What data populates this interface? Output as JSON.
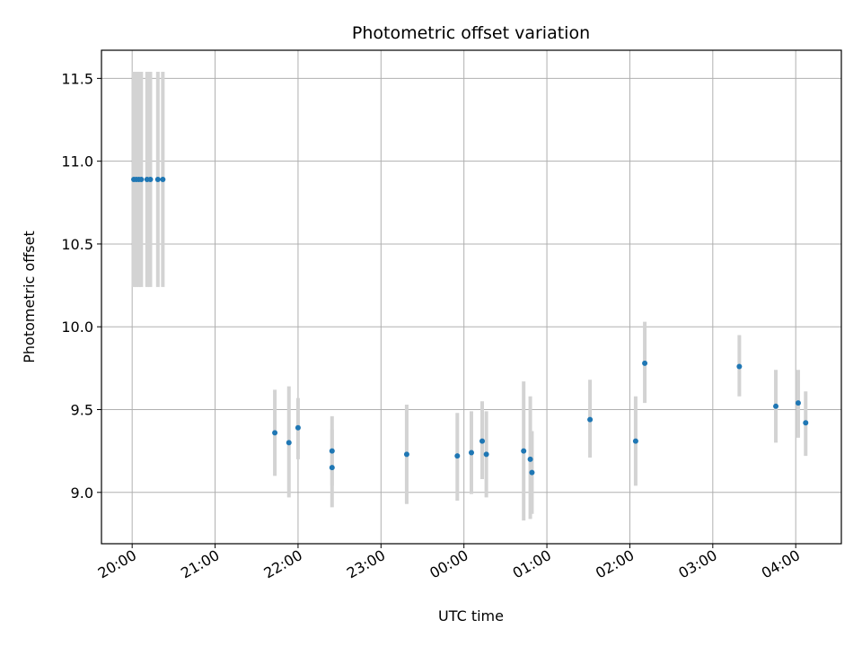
{
  "chart_data": {
    "type": "scatter",
    "title": "Photometric offset variation",
    "xlabel": "UTC time",
    "ylabel": "Photometric offset",
    "x_unit": "hours",
    "xlim": [
      19.63,
      28.55
    ],
    "ylim": [
      8.69,
      11.67
    ],
    "grid": true,
    "x_ticks": [
      {
        "value": 20,
        "label": "20:00"
      },
      {
        "value": 21,
        "label": "21:00"
      },
      {
        "value": 22,
        "label": "22:00"
      },
      {
        "value": 23,
        "label": "23:00"
      },
      {
        "value": 24,
        "label": "00:00"
      },
      {
        "value": 25,
        "label": "01:00"
      },
      {
        "value": 26,
        "label": "02:00"
      },
      {
        "value": 27,
        "label": "03:00"
      },
      {
        "value": 28,
        "label": "04:00"
      }
    ],
    "y_ticks": [
      {
        "value": 9.0,
        "label": "9.0"
      },
      {
        "value": 9.5,
        "label": "9.5"
      },
      {
        "value": 10.0,
        "label": "10.0"
      },
      {
        "value": 10.5,
        "label": "10.5"
      },
      {
        "value": 11.0,
        "label": "11.0"
      },
      {
        "value": 11.5,
        "label": "11.5"
      }
    ],
    "colors": {
      "point": "#1f77b4",
      "errorbar": "#d3d3d3",
      "grid": "#b0b0b0"
    },
    "points": [
      {
        "x": 20.02,
        "y": 10.89,
        "err_low": 10.24,
        "err_high": 11.54
      },
      {
        "x": 20.05,
        "y": 10.89,
        "err_low": 10.24,
        "err_high": 11.54
      },
      {
        "x": 20.08,
        "y": 10.89,
        "err_low": 10.24,
        "err_high": 11.54
      },
      {
        "x": 20.11,
        "y": 10.89,
        "err_low": 10.24,
        "err_high": 11.54
      },
      {
        "x": 20.18,
        "y": 10.89,
        "err_low": 10.24,
        "err_high": 11.54
      },
      {
        "x": 20.22,
        "y": 10.89,
        "err_low": 10.24,
        "err_high": 11.54
      },
      {
        "x": 20.31,
        "y": 10.89,
        "err_low": 10.24,
        "err_high": 11.54
      },
      {
        "x": 20.37,
        "y": 10.89,
        "err_low": 10.24,
        "err_high": 11.54
      },
      {
        "x": 21.72,
        "y": 9.36,
        "err_low": 9.1,
        "err_high": 9.62
      },
      {
        "x": 21.89,
        "y": 9.3,
        "err_low": 8.97,
        "err_high": 9.64
      },
      {
        "x": 22.0,
        "y": 9.39,
        "err_low": 9.2,
        "err_high": 9.57
      },
      {
        "x": 22.41,
        "y": 9.25,
        "err_low": 9.04,
        "err_high": 9.46
      },
      {
        "x": 22.41,
        "y": 9.15,
        "err_low": 8.91,
        "err_high": 9.38
      },
      {
        "x": 23.31,
        "y": 9.23,
        "err_low": 8.93,
        "err_high": 9.53
      },
      {
        "x": 23.92,
        "y": 9.22,
        "err_low": 8.95,
        "err_high": 9.48
      },
      {
        "x": 24.09,
        "y": 9.24,
        "err_low": 8.99,
        "err_high": 9.49
      },
      {
        "x": 24.22,
        "y": 9.31,
        "err_low": 9.08,
        "err_high": 9.55
      },
      {
        "x": 24.27,
        "y": 9.23,
        "err_low": 8.97,
        "err_high": 9.49
      },
      {
        "x": 24.72,
        "y": 9.25,
        "err_low": 8.83,
        "err_high": 9.67
      },
      {
        "x": 24.8,
        "y": 9.2,
        "err_low": 8.84,
        "err_high": 9.58
      },
      {
        "x": 24.82,
        "y": 9.12,
        "err_low": 8.87,
        "err_high": 9.37
      },
      {
        "x": 25.52,
        "y": 9.44,
        "err_low": 9.21,
        "err_high": 9.68
      },
      {
        "x": 26.07,
        "y": 9.31,
        "err_low": 9.04,
        "err_high": 9.58
      },
      {
        "x": 26.18,
        "y": 9.78,
        "err_low": 9.54,
        "err_high": 10.03
      },
      {
        "x": 27.32,
        "y": 9.76,
        "err_low": 9.58,
        "err_high": 9.95
      },
      {
        "x": 27.76,
        "y": 9.52,
        "err_low": 9.3,
        "err_high": 9.74
      },
      {
        "x": 28.03,
        "y": 9.54,
        "err_low": 9.33,
        "err_high": 9.74
      },
      {
        "x": 28.12,
        "y": 9.42,
        "err_low": 9.22,
        "err_high": 9.61
      }
    ]
  }
}
